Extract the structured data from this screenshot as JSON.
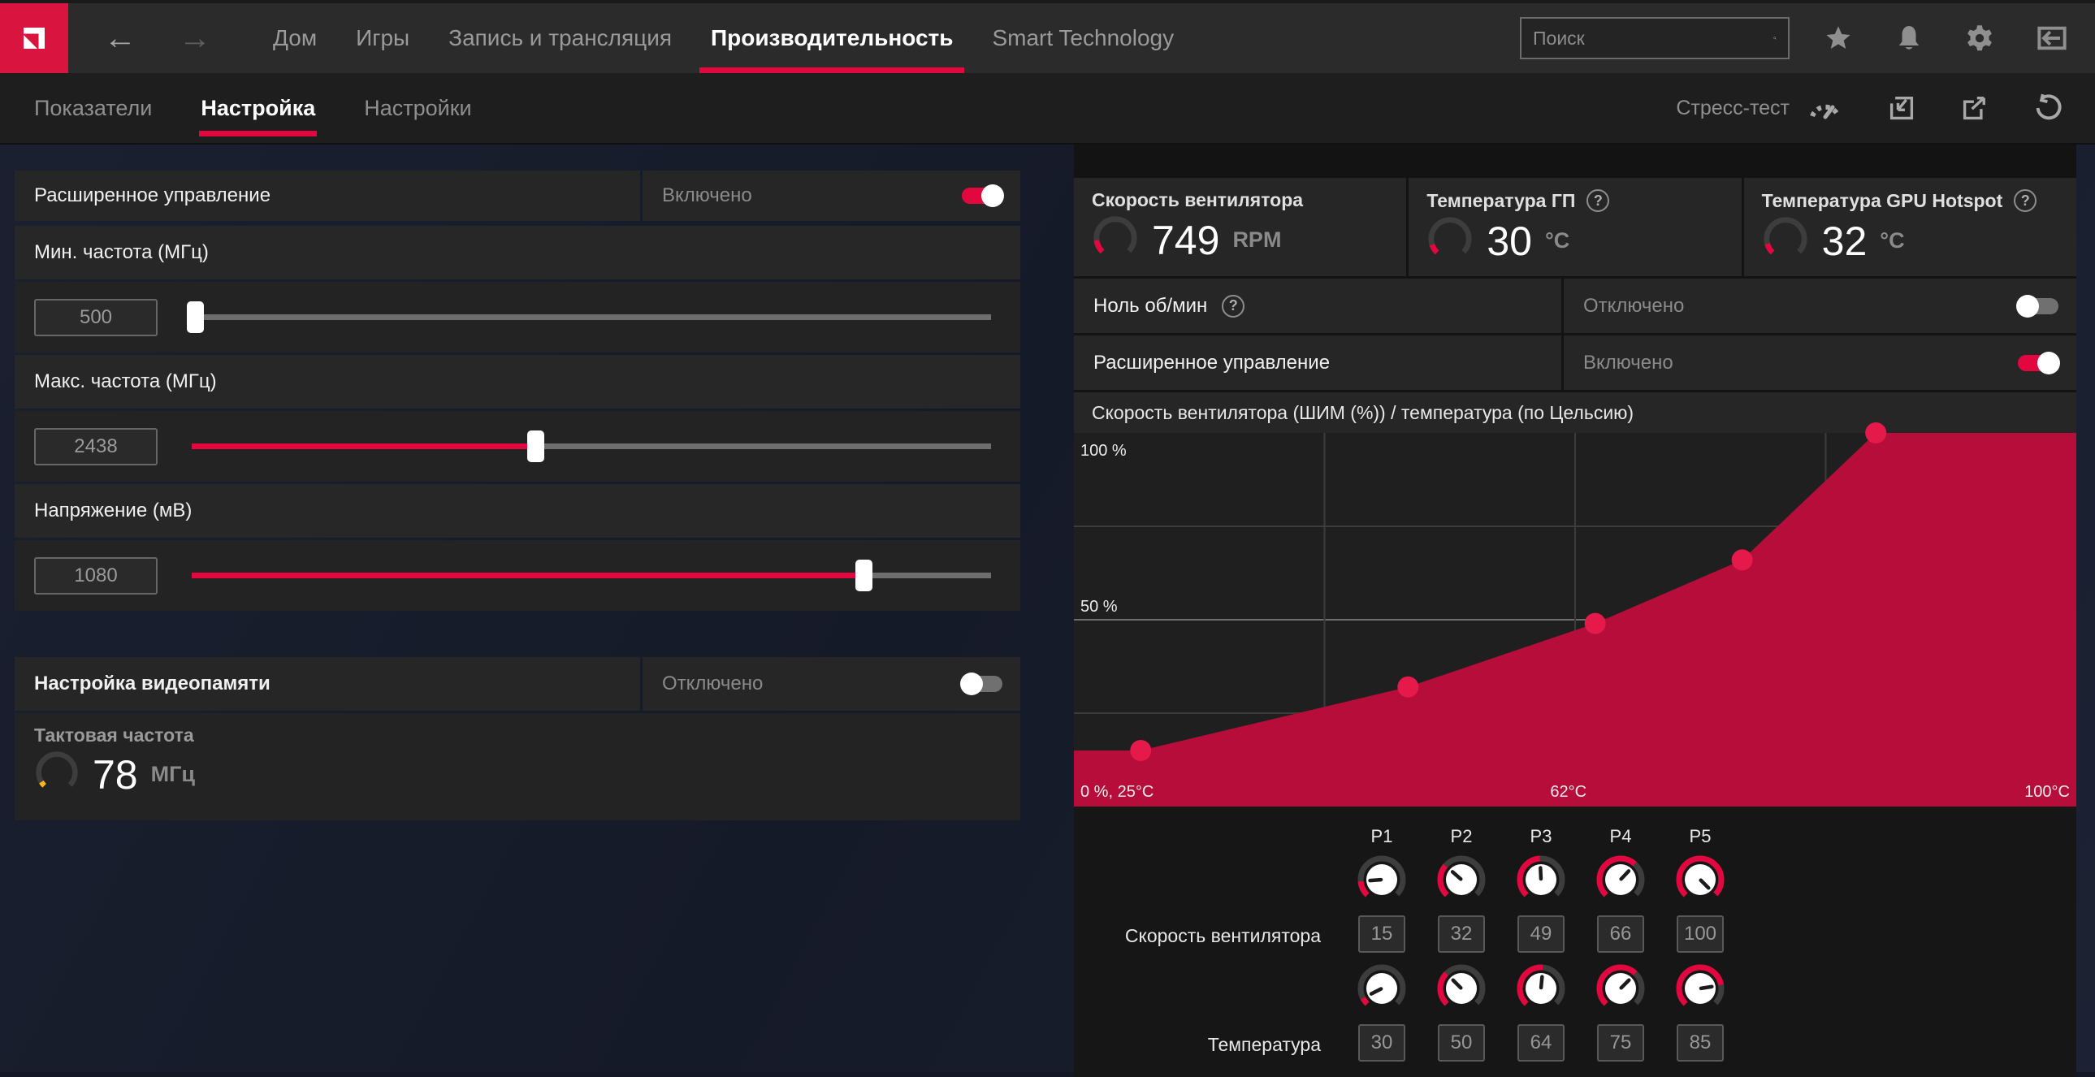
{
  "colors": {
    "accent": "#e2073f",
    "logo_red": "#d9143f",
    "chart_fill": "#b60d3a",
    "chart_dot": "#e6194b",
    "gauge_ring": "#3d3d3d",
    "clock_tick": "#ffb71b"
  },
  "topbar": {
    "nav": [
      {
        "label": "Дом",
        "active": false
      },
      {
        "label": "Игры",
        "active": false
      },
      {
        "label": "Запись и трансляция",
        "active": false
      },
      {
        "label": "Производительность",
        "active": true
      },
      {
        "label": "Smart Technology",
        "active": false
      }
    ],
    "search": {
      "placeholder": "Поиск"
    }
  },
  "subnav": {
    "tabs": [
      {
        "label": "Показатели",
        "active": false
      },
      {
        "label": "Настройка",
        "active": true
      },
      {
        "label": "Настройки",
        "active": false
      }
    ],
    "stress_test_label": "Стресс-тест"
  },
  "left_panel": {
    "advanced_control": {
      "label": "Расширенное управление",
      "status": "Включено",
      "enabled": true
    },
    "sliders": [
      {
        "label": "Мин. частота (МГц)",
        "value": "500",
        "fill": 0.004
      },
      {
        "label": "Макс. частота (МГц)",
        "value": "2438",
        "fill": 0.43
      },
      {
        "label": "Напряжение (мВ)",
        "value": "1080",
        "fill": 0.84
      }
    ],
    "vram": {
      "label": "Настройка видеопамяти",
      "status": "Отключено",
      "enabled": false
    },
    "memory_clock": {
      "label": "Тактовая частота",
      "value": "78",
      "unit": "МГц",
      "arc": 0.05
    }
  },
  "right_panel": {
    "stats": [
      {
        "label": "Скорость вентилятора",
        "value": "749",
        "unit": "RPM",
        "help": false,
        "arc": 0.14
      },
      {
        "label": "Температура ГП",
        "value": "30",
        "unit": "°C",
        "help": true,
        "arc": 0.1
      },
      {
        "label": "Температура GPU Hotspot",
        "value": "32",
        "unit": "°C",
        "help": true,
        "arc": 0.11
      }
    ],
    "rows": [
      {
        "label": "Ноль об/мин",
        "help": true,
        "status": "Отключено",
        "enabled": false
      },
      {
        "label": "Расширенное управление",
        "help": false,
        "status": "Включено",
        "enabled": true
      }
    ],
    "chart_title": "Скорость вентилятора (ШИМ (%)) / температура (по Цельсию)"
  },
  "chart_data": {
    "type": "area",
    "title": "Скорость вентилятора (ШИМ (%)) / температура (по Цельсию)",
    "point_labels": [
      "P1",
      "P2",
      "P3",
      "P4",
      "P5"
    ],
    "x_temperature_c": [
      30,
      50,
      64,
      75,
      85
    ],
    "y_fan_pwm_pct": [
      15,
      32,
      49,
      66,
      100
    ],
    "xlim": [
      25,
      100
    ],
    "ylim": [
      0,
      100
    ],
    "ytick_labels": [
      "100 %",
      "50 %"
    ],
    "xtick_labels": [
      "0 %, 25°C",
      "62°C",
      "100°C"
    ],
    "grid": true,
    "legend": false
  },
  "curve_editor": {
    "point_labels": [
      "P1",
      "P2",
      "P3",
      "P4",
      "P5"
    ],
    "rows": [
      {
        "label": "Скорость вентилятора",
        "values": [
          "15",
          "32",
          "49",
          "66",
          "100"
        ],
        "min": 0,
        "max": 100
      },
      {
        "label": "Температура",
        "values": [
          "30",
          "50",
          "64",
          "75",
          "85"
        ],
        "min": 25,
        "max": 100
      }
    ]
  }
}
